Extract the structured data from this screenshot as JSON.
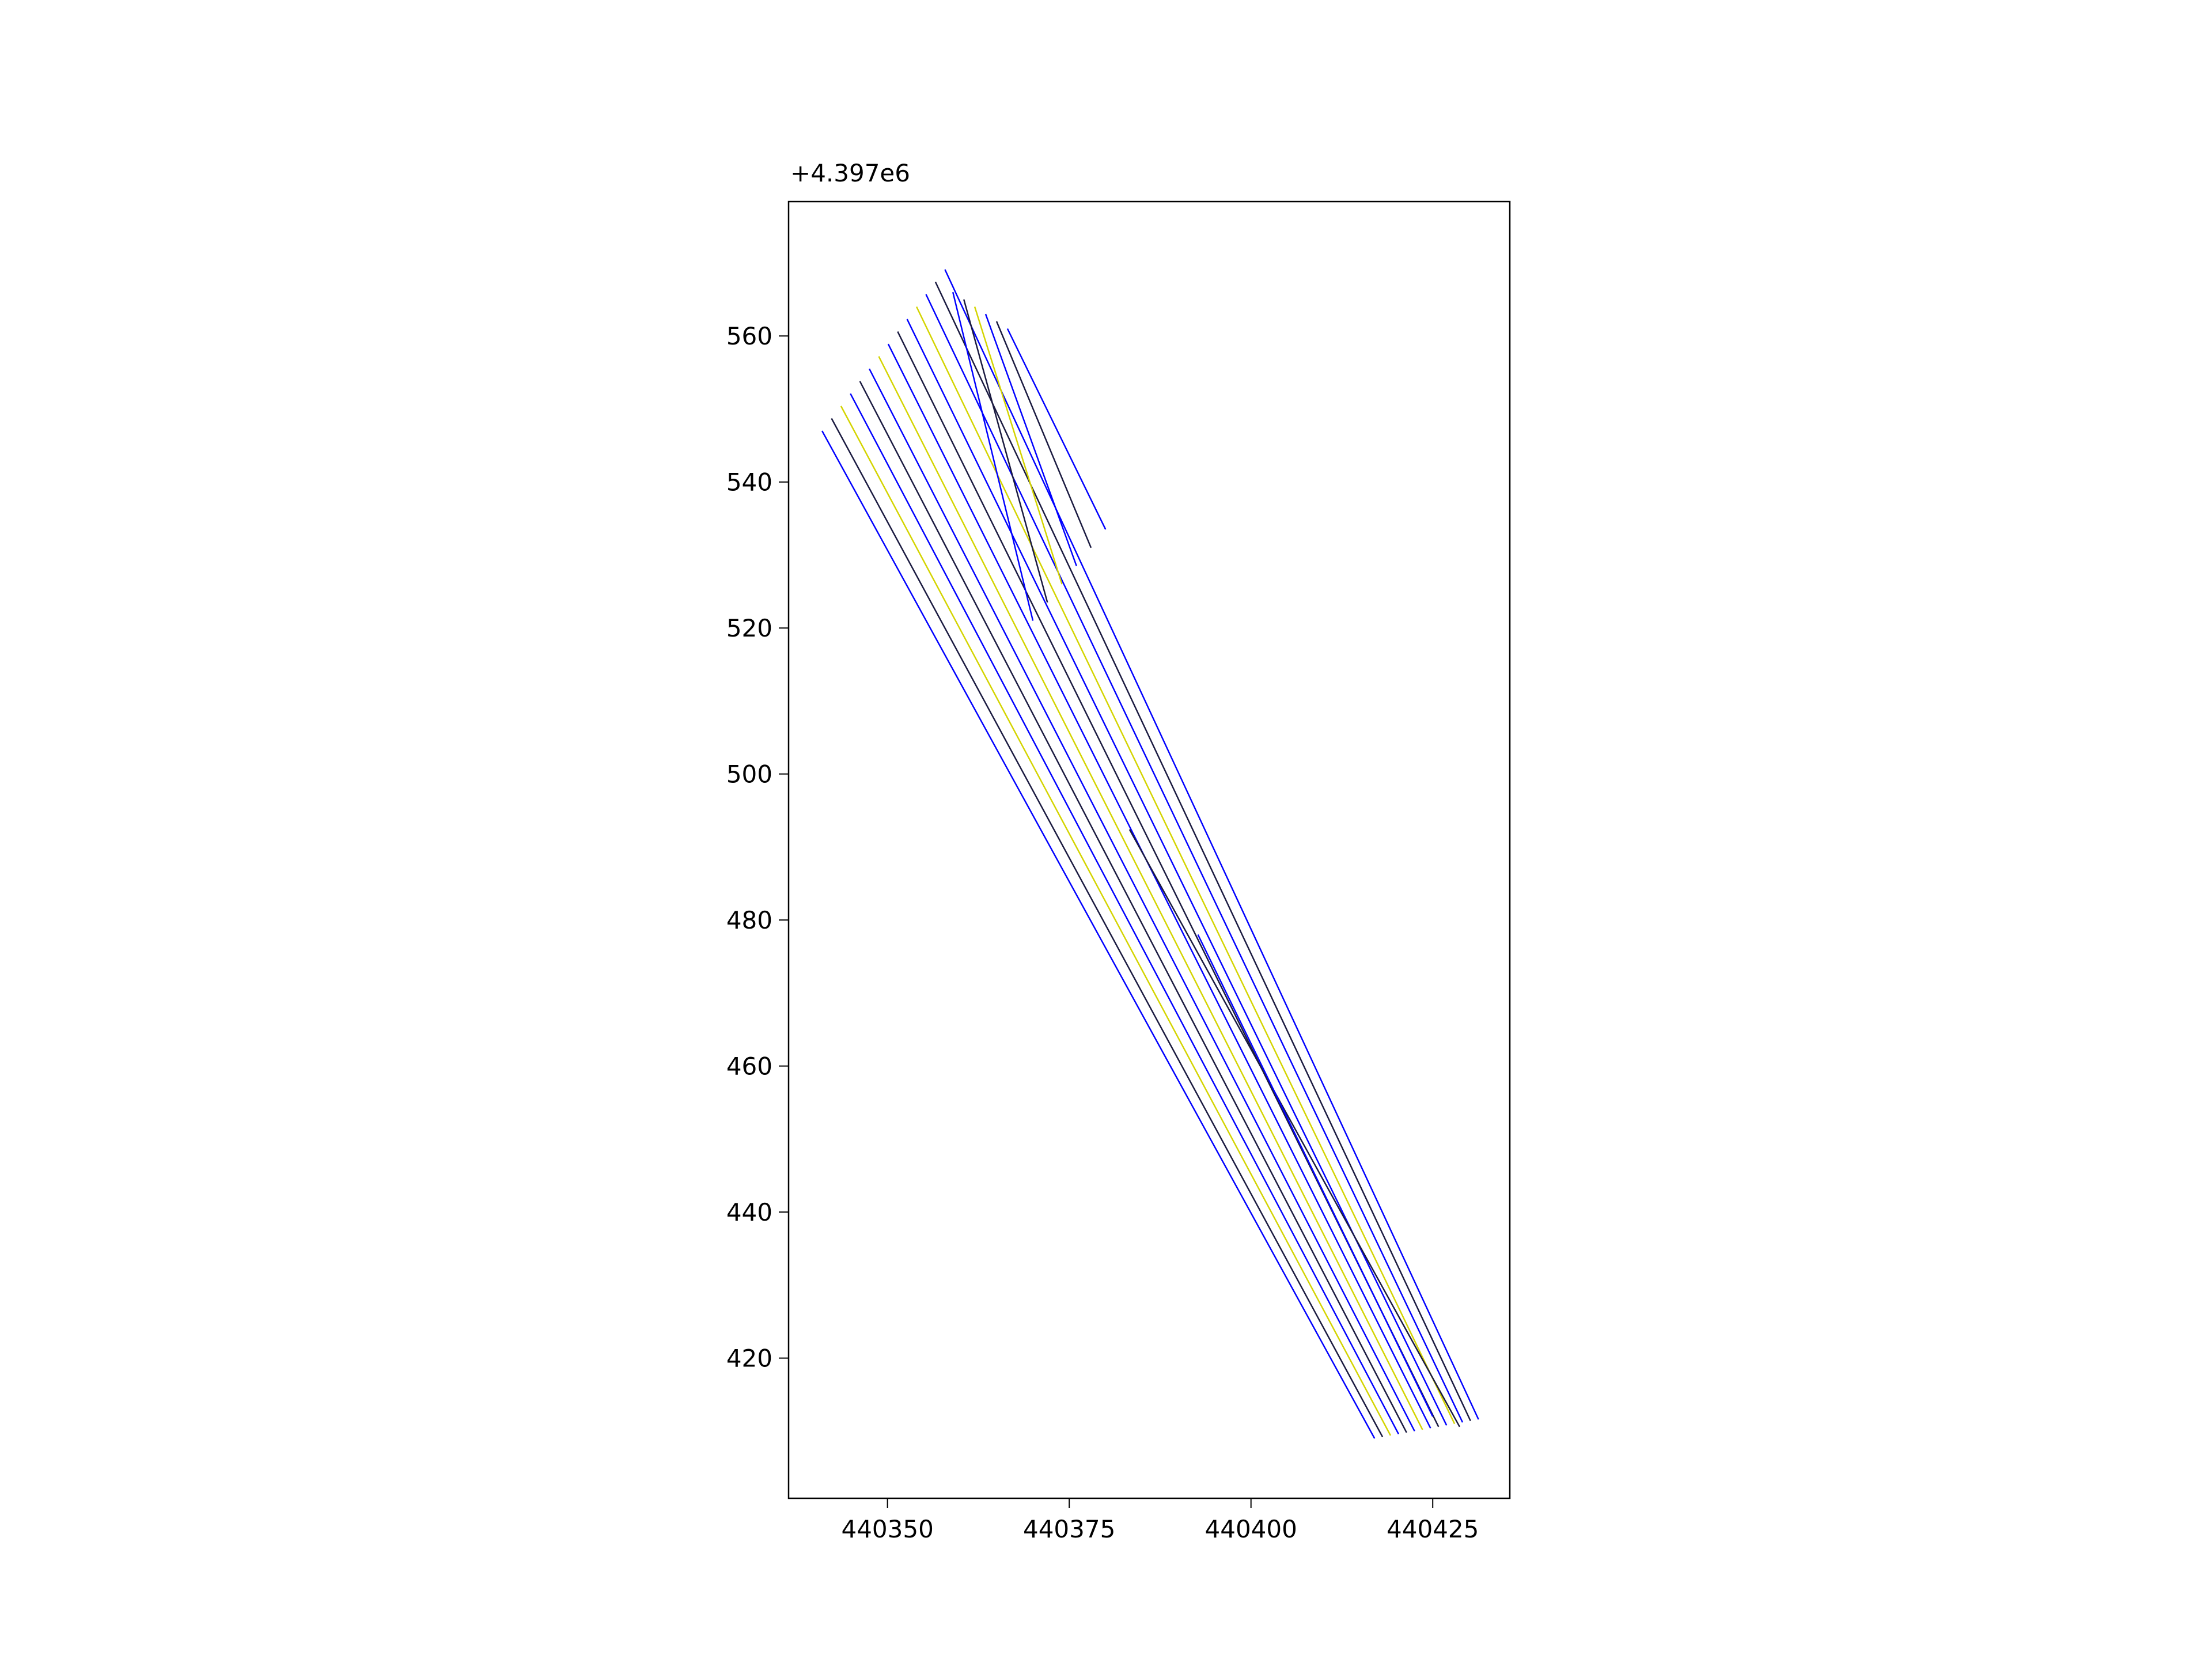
{
  "chart_data": {
    "type": "line",
    "y_offset_label": "+4.397e6",
    "xlim": [
      440336.4,
      440435.6
    ],
    "xticks": [
      440350,
      440375,
      440400,
      440425
    ],
    "ylim": [
      400.8,
      578.4
    ],
    "yticks": [
      420,
      440,
      460,
      480,
      500,
      520,
      540,
      560
    ],
    "grid": false,
    "series": [
      {
        "color": "#0000ff",
        "x": [
          440341,
          440417
        ],
        "y": [
          547,
          409
        ]
      },
      {
        "color": "#1a1a40",
        "x": [
          440342.3,
          440418.1
        ],
        "y": [
          548.7,
          409.2
        ]
      },
      {
        "color": "#d4d400",
        "x": [
          440343.6,
          440419.2
        ],
        "y": [
          550.4,
          409.4
        ]
      },
      {
        "color": "#0000ff",
        "x": [
          440344.9,
          440420.3
        ],
        "y": [
          552.1,
          409.6
        ]
      },
      {
        "color": "#1a1a40",
        "x": [
          440346.2,
          440421.4
        ],
        "y": [
          553.8,
          409.8
        ]
      },
      {
        "color": "#0000ff",
        "x": [
          440347.5,
          440422.5
        ],
        "y": [
          555.5,
          410
        ]
      },
      {
        "color": "#d4d400",
        "x": [
          440348.8,
          440423.6
        ],
        "y": [
          557.2,
          410.2
        ]
      },
      {
        "color": "#0000ff",
        "x": [
          440350.1,
          440424.7
        ],
        "y": [
          558.9,
          410.4
        ]
      },
      {
        "color": "#1a1a40",
        "x": [
          440351.4,
          440425.8
        ],
        "y": [
          560.6,
          410.6
        ]
      },
      {
        "color": "#0000ff",
        "x": [
          440352.7,
          440426.9
        ],
        "y": [
          562.3,
          410.8
        ]
      },
      {
        "color": "#d4d400",
        "x": [
          440354,
          440428
        ],
        "y": [
          564,
          411
        ]
      },
      {
        "color": "#0000ff",
        "x": [
          440355.3,
          440429.1
        ],
        "y": [
          565.7,
          411.2
        ]
      },
      {
        "color": "#1a1a40",
        "x": [
          440356.6,
          440430.2
        ],
        "y": [
          567.4,
          411.4
        ]
      },
      {
        "color": "#0000ff",
        "x": [
          440357.9,
          440431.3
        ],
        "y": [
          569.1,
          411.6
        ]
      },
      {
        "color": "#0000ff",
        "x": [
          440359,
          440370
        ],
        "y": [
          566,
          521
        ]
      },
      {
        "color": "#1a1a40",
        "x": [
          440360.5,
          440372
        ],
        "y": [
          565,
          523.5
        ]
      },
      {
        "color": "#d4d400",
        "x": [
          440362,
          440374
        ],
        "y": [
          564,
          526
        ]
      },
      {
        "color": "#0000ff",
        "x": [
          440363.5,
          440376
        ],
        "y": [
          563,
          528.5
        ]
      },
      {
        "color": "#1a1a40",
        "x": [
          440365,
          440378
        ],
        "y": [
          562,
          531
        ]
      },
      {
        "color": "#0000ff",
        "x": [
          440366.5,
          440380
        ],
        "y": [
          561,
          533.5
        ]
      },
      {
        "color": "#1a1a40",
        "x": [
          440383.3,
          440428.7
        ],
        "y": [
          492.4,
          410.6
        ]
      },
      {
        "color": "#0000ff",
        "x": [
          440392.7,
          440425
        ],
        "y": [
          478,
          412
        ]
      }
    ]
  }
}
